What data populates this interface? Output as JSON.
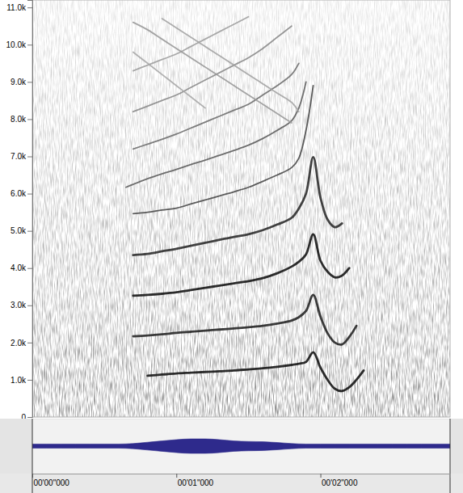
{
  "chart_data": [
    {
      "type": "spectrogram",
      "x": [
        0.65,
        0.7,
        0.8,
        0.9,
        1.0,
        1.1,
        1.2,
        1.3,
        1.4,
        1.5,
        1.6,
        1.7,
        1.8,
        1.85,
        1.9,
        1.95,
        2.0,
        2.05,
        2.1,
        2.15,
        2.2,
        2.25,
        2.3
      ],
      "series": [
        {
          "color": "#161616",
          "values": [
            null,
            null,
            1110,
            1140,
            1170,
            1190,
            1210,
            1230,
            1250,
            1280,
            1310,
            1350,
            1400,
            1430,
            1480,
            1740,
            1330,
            1000,
            760,
            700,
            800,
            1000,
            1250
          ]
        },
        {
          "color": "#262626",
          "values": [
            null,
            2170,
            2190,
            2220,
            2260,
            2290,
            2320,
            2350,
            2380,
            2410,
            2450,
            2510,
            2590,
            2680,
            2850,
            3280,
            2700,
            2250,
            2000,
            1950,
            2150,
            2450,
            null
          ]
        },
        {
          "color": "#161616",
          "values": [
            null,
            3260,
            3280,
            3310,
            3350,
            3410,
            3470,
            3530,
            3590,
            3650,
            3730,
            3860,
            4040,
            4170,
            4370,
            4910,
            4200,
            3900,
            3750,
            3800,
            4000,
            null,
            null
          ]
        },
        {
          "color": "#2e2e2e",
          "values": [
            null,
            4350,
            4380,
            4450,
            4520,
            4600,
            4680,
            4760,
            4840,
            4910,
            5020,
            5170,
            5350,
            5600,
            6000,
            6980,
            5900,
            5300,
            5100,
            5200,
            null,
            null,
            null
          ]
        },
        {
          "color": "#4a4a4a",
          "values": [
            null,
            5460,
            5500,
            5560,
            5610,
            5720,
            5830,
            5940,
            6050,
            6170,
            6330,
            6500,
            6700,
            6950,
            7700,
            8900,
            null,
            null,
            null,
            null,
            null,
            null,
            null
          ]
        },
        {
          "color": "#5e5e5e",
          "values": [
            6170,
            6250,
            6400,
            6530,
            6650,
            6780,
            6900,
            7030,
            7160,
            7300,
            7480,
            7700,
            7960,
            8300,
            9000,
            null,
            null,
            null,
            null,
            null,
            null,
            null,
            null
          ]
        },
        {
          "color": "#707070",
          "values": [
            null,
            7200,
            7330,
            7460,
            7600,
            7760,
            7920,
            8080,
            8240,
            8400,
            8650,
            8900,
            9200,
            9500,
            null,
            null,
            null,
            null,
            null,
            null,
            null,
            null,
            null
          ]
        },
        {
          "color": "#8c8c8c",
          "values": [
            null,
            8200,
            8350,
            8500,
            8650,
            8850,
            9050,
            9250,
            9450,
            9650,
            9900,
            10200,
            10500,
            null,
            null,
            null,
            null,
            null,
            null,
            null,
            null,
            null,
            null
          ]
        },
        {
          "color": "#a0a0a0",
          "values": [
            null,
            9300,
            9450,
            9600,
            9750,
            9950,
            10150,
            10350,
            10550,
            10750,
            null,
            null,
            null,
            null,
            null,
            null,
            null,
            null,
            null,
            null,
            null,
            null,
            null
          ]
        },
        {
          "color": "#9a9a9a",
          "values": [
            null,
            10600,
            10400,
            10150,
            9900,
            9650,
            9400,
            9150,
            8900,
            8650,
            8400,
            8150,
            7900,
            null,
            null,
            null,
            null,
            null,
            null,
            null,
            null,
            null,
            null
          ]
        },
        {
          "color": "#a4a4a4",
          "values": [
            null,
            null,
            null,
            10700,
            10450,
            10200,
            9950,
            9700,
            9450,
            9200,
            8950,
            8700,
            8450,
            8200,
            null,
            null,
            null,
            null,
            null,
            null,
            null,
            null,
            null
          ]
        },
        {
          "color": "#a8a8a8",
          "values": [
            null,
            9800,
            9500,
            9200,
            8900,
            8600,
            8300,
            null,
            null,
            null,
            null,
            null,
            null,
            null,
            null,
            null,
            null,
            null,
            null,
            null,
            null,
            null,
            null
          ]
        }
      ],
      "xlim": [
        0,
        2.9
      ],
      "ylim": [
        0,
        11200
      ],
      "yticks": [
        0,
        {
          "value": 1000,
          "label": "1.0k"
        },
        {
          "value": 2000,
          "label": "2.0k"
        },
        {
          "value": 3000,
          "label": "3.0k"
        },
        {
          "value": 4000,
          "label": "4.0k"
        },
        {
          "value": 5000,
          "label": "5.0k"
        },
        {
          "value": 6000,
          "label": "6.0k"
        },
        {
          "value": 7000,
          "label": "7.0k"
        },
        {
          "value": 8000,
          "label": "8.0k"
        },
        {
          "value": 9000,
          "label": "9.0k"
        },
        {
          "value": 10000,
          "label": "10.0k"
        },
        {
          "value": 11000,
          "label": "11.0k"
        }
      ],
      "tick_labels": "y"
    },
    {
      "type": "area",
      "x": [
        0,
        0.1,
        0.2,
        0.3,
        0.4,
        0.5,
        0.6,
        0.7,
        0.8,
        0.9,
        1.0,
        1.1,
        1.2,
        1.3,
        1.4,
        1.5,
        1.6,
        1.7,
        1.8,
        1.9,
        2.0,
        2.1,
        2.2,
        2.3,
        2.4,
        2.5,
        2.6,
        2.7,
        2.8,
        2.9
      ],
      "values": [
        0.08,
        0.08,
        0.08,
        0.08,
        0.08,
        0.08,
        0.08,
        0.1,
        0.15,
        0.2,
        0.25,
        0.28,
        0.28,
        0.25,
        0.2,
        0.18,
        0.17,
        0.14,
        0.1,
        0.08,
        0.08,
        0.08,
        0.08,
        0.08,
        0.08,
        0.08,
        0.08,
        0.08,
        0.08,
        0.08
      ],
      "color": "#2e2a8c",
      "xlim": [
        0,
        2.9
      ],
      "ylim": [
        -1,
        1
      ],
      "xticks": [
        {
          "value": 0,
          "label": "00'00\"000"
        },
        {
          "value": 1,
          "label": "00'01\"000"
        },
        {
          "value": 2,
          "label": "00'02\"000"
        }
      ],
      "tick_labels": "x"
    }
  ]
}
